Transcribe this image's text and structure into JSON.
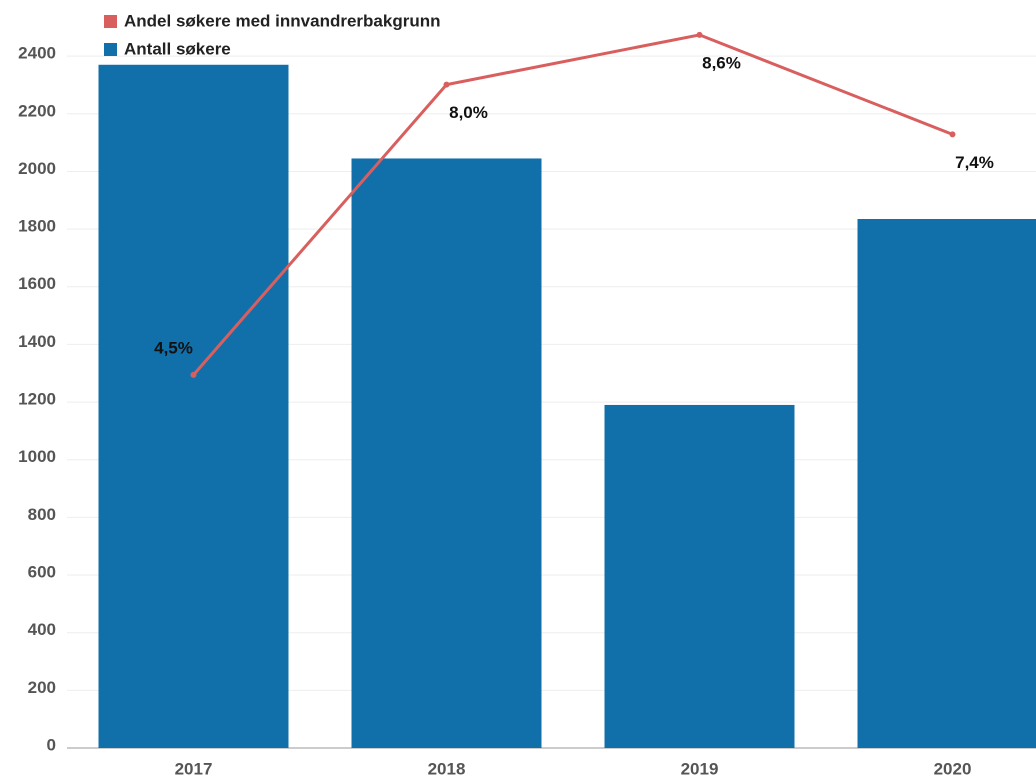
{
  "chart_data": {
    "type": "bar_line",
    "categories": [
      "2017",
      "2018",
      "2019",
      "2020"
    ],
    "series": [
      {
        "name": "Andel søkere med innvandrerbakgrunn",
        "color": "#d95f5f",
        "type": "line",
        "axis": "y2",
        "values": [
          4.5,
          8.0,
          8.6,
          7.4
        ],
        "value_labels": [
          "4,5%",
          "8,0%",
          "8,6%",
          "7,4%"
        ]
      },
      {
        "name": "Antall søkere",
        "color": "#1170aa",
        "type": "bar",
        "values": [
          2370,
          2045,
          1190,
          1835
        ]
      }
    ],
    "ylim": [
      0,
      2560
    ],
    "yticks": [
      0,
      200,
      400,
      600,
      800,
      1000,
      1200,
      1400,
      1600,
      1800,
      2000,
      2200,
      2400
    ],
    "y2lim": [
      0,
      8.9
    ],
    "grid": true,
    "legend": "top-left"
  }
}
